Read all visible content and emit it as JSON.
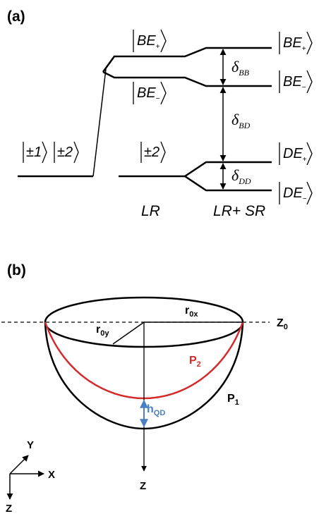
{
  "panel_a": {
    "label": "(a)",
    "states": {
      "pm1": "±1",
      "pm2": "±2",
      "pm2_lr": "±2",
      "be_plus": {
        "base": "BE",
        "sub": "+"
      },
      "be_minus": {
        "base": "BE",
        "sub": "−"
      },
      "be_plus_r": {
        "base": "BE",
        "sub": "+"
      },
      "be_minus_r": {
        "base": "BE",
        "sub": "−"
      },
      "de_plus": {
        "base": "DE",
        "sub": "+"
      },
      "de_minus": {
        "base": "DE",
        "sub": "−"
      }
    },
    "splittings": {
      "bb": {
        "base": "δ",
        "sub": "BB"
      },
      "bd": {
        "base": "δ",
        "sub": "BD"
      },
      "dd": {
        "base": "δ",
        "sub": "DD"
      }
    },
    "axis_labels": {
      "lr": "LR",
      "lr_sr": "LR+ SR"
    }
  },
  "panel_b": {
    "label": "(b)",
    "r0x": {
      "base": "r",
      "sub": "0x"
    },
    "r0y": {
      "base": "r",
      "sub": "0y"
    },
    "z0": {
      "base": "Z",
      "sub": "0"
    },
    "p2": {
      "base": "P",
      "sub": "2"
    },
    "p1": {
      "base": "P",
      "sub": "1"
    },
    "hqd": {
      "base": "h",
      "sub": "QD"
    },
    "z_axis": "Z",
    "coords": {
      "y": "Y",
      "x": "X",
      "z": "Z"
    },
    "colors": {
      "p2": "#d42a2a",
      "hqd": "#4a7fc1",
      "outline": "#000000"
    }
  }
}
